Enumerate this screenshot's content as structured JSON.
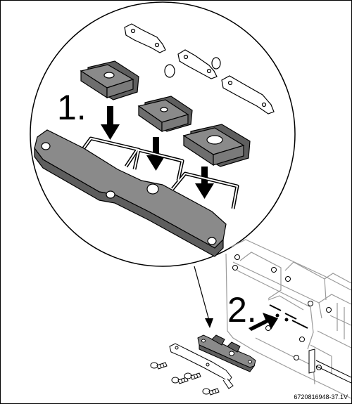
{
  "steps": [
    {
      "number": "1."
    },
    {
      "number": "2."
    }
  ],
  "figure_code": "6720816948-37.1V",
  "colors": {
    "outline": "#000000",
    "part_fill": "#8a8a8a",
    "part_dark": "#5e5e5e",
    "housing_line": "#9a9a9a",
    "background": "#ffffff"
  }
}
